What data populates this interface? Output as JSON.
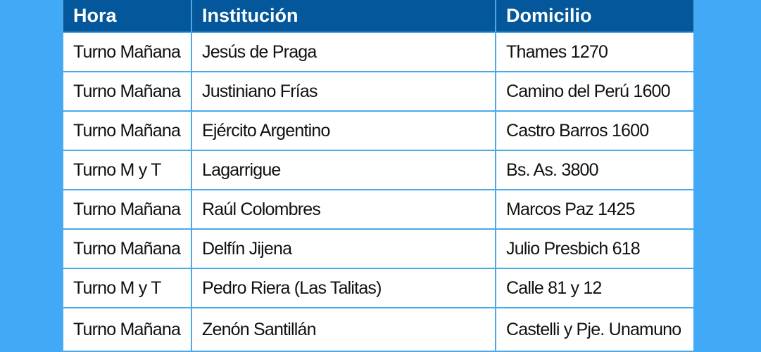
{
  "headers": [
    "Hora",
    "Institución",
    "Domicilio"
  ],
  "rows": [
    [
      "Turno Mañana",
      "Jesús de Praga",
      "Thames 1270"
    ],
    [
      "Turno Mañana",
      "Justiniano Frías",
      "Camino del Perú 1600"
    ],
    [
      "Turno Mañana",
      "Ejército Argentino",
      "Castro Barros 1600"
    ],
    [
      "Turno M y T",
      "Lagarrigue",
      "Bs. As. 3800"
    ],
    [
      "Turno Mañana",
      "Raúl Colombres",
      "Marcos Paz 1425"
    ],
    [
      "Turno Mañana",
      "Delfín Jijena",
      "Julio Presbich 618"
    ],
    [
      "Turno M y T",
      "Pedro Riera (Las Talitas)",
      "Calle 81 y 12"
    ],
    [
      "Turno Mañana",
      "Zenón Santillán",
      "Castelli y Pje. Unamuno"
    ]
  ],
  "colors": {
    "background": "#42a9f6",
    "header": "#03579a",
    "border": "#4aa9ea"
  }
}
